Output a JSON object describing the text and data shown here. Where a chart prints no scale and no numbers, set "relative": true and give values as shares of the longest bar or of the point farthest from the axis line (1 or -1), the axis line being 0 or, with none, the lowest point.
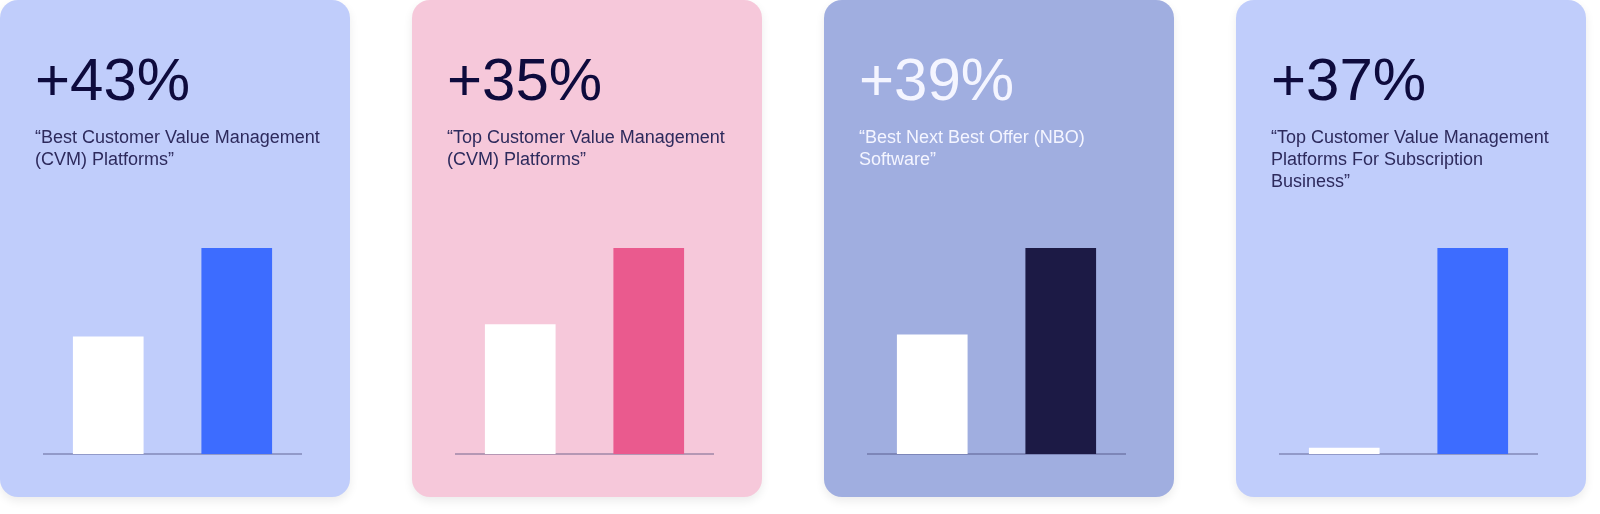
{
  "chart_data": [
    {
      "type": "bar",
      "title": "+43%",
      "subtitle": "“Best Customer Value Management (CVM) Platforms”",
      "categories": [
        null,
        null
      ],
      "values": [
        0.57,
        1
      ],
      "colors": [
        "#ffffff",
        "#3d6cff"
      ],
      "relative": true
    },
    {
      "type": "bar",
      "title": "+35%",
      "subtitle": "“Top Customer Value Management (CVM) Platforms”",
      "categories": [
        null,
        null
      ],
      "values": [
        0.63,
        1
      ],
      "colors": [
        "#ffffff",
        "#ea5a8e"
      ],
      "relative": true
    },
    {
      "type": "bar",
      "title": "+39%",
      "subtitle": "“Best Next Best Offer (NBO) Software”",
      "categories": [
        null,
        null
      ],
      "values": [
        0.58,
        1
      ],
      "colors": [
        "#ffffff",
        "#1c1a45"
      ],
      "relative": true
    },
    {
      "type": "bar",
      "title": "+37%",
      "subtitle": "“Top Customer Value Management Platforms For Subscription Business”",
      "categories": [
        null,
        null
      ],
      "values": [
        0.03,
        1
      ],
      "colors": [
        "#ffffff",
        "#3d6cff"
      ],
      "relative": true
    }
  ]
}
